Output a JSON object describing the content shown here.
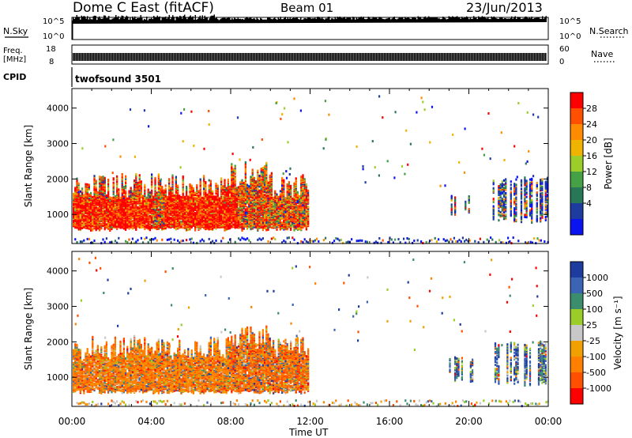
{
  "header": {
    "station": "Dome C East (fitACF)",
    "beam": "Beam 01",
    "date": "23/Jun/2013"
  },
  "strip": {
    "nsky_label": "N.Sky",
    "nsky_top": "10^5",
    "nsky_bottom": "10^0",
    "nsearch_label": "N.Search",
    "nsearch_top": "10^5",
    "nsearch_bottom": "10^0",
    "freq_label": "Freq.",
    "freq_unit": "[MHz]",
    "freq_top": "18",
    "freq_bottom": "8",
    "nave_label": "Nave",
    "nave_top": "60",
    "nave_bottom": "0",
    "cpid_label": "CPID",
    "cpid_value": "twofsound 3501"
  },
  "colors": {
    "power": [
      "#0a14f0",
      "#1e3ca0",
      "#287858",
      "#46a046",
      "#9ccd28",
      "#f0b400",
      "#ff8c00",
      "#ff5000",
      "#ff0000"
    ],
    "velocity": [
      "#1e3ca0",
      "#3c64b4",
      "#3c8c6e",
      "#9bcd28",
      "#c8c8c8",
      "#f0a000",
      "#ff8000",
      "#ff5000",
      "#ff0000"
    ]
  },
  "chart_data": [
    {
      "type": "heatmap",
      "ylabel": "Slant Range [km]",
      "xlabel": "",
      "x_ticks": [
        "00:00",
        "04:00",
        "08:00",
        "12:00",
        "16:00",
        "20:00",
        "00:00"
      ],
      "xlim": [
        0,
        24
      ],
      "ylim": [
        180,
        4550
      ],
      "y_ticks": [
        1000,
        2000,
        3000,
        4000
      ],
      "colorbar_label": "Power [dB]",
      "colorbar_ticks": [
        "4",
        "8",
        "12",
        "16",
        "20",
        "24",
        "28"
      ],
      "regions": [
        {
          "t0": 0.0,
          "t1": 11.9,
          "r0": 600,
          "r1": 2100,
          "value": "mixed-high"
        },
        {
          "t0": 4.6,
          "t1": 8.3,
          "r0": 700,
          "r1": 1700,
          "value": "high"
        },
        {
          "t0": 19.0,
          "t1": 20.2,
          "r0": 900,
          "r1": 1800,
          "value": "mixed"
        },
        {
          "t0": 21.2,
          "t1": 24.0,
          "r0": 800,
          "r1": 2200,
          "value": "mixed"
        }
      ]
    },
    {
      "type": "heatmap",
      "ylabel": "Slant Range [km]",
      "xlabel": "Time UT",
      "x_ticks": [
        "00:00",
        "04:00",
        "08:00",
        "12:00",
        "16:00",
        "20:00",
        "00:00"
      ],
      "xlim": [
        0,
        24
      ],
      "ylim": [
        180,
        4550
      ],
      "y_ticks": [
        1000,
        2000,
        3000,
        4000
      ],
      "colorbar_label": "Velocity [m s⁻¹]",
      "colorbar_ticks": [
        "1000",
        "500",
        "100",
        "25",
        "-25",
        "-100",
        "-500",
        "-1000"
      ],
      "regions": [
        {
          "t0": 0.0,
          "t1": 11.9,
          "r0": 600,
          "r1": 2100,
          "value": "negative"
        },
        {
          "t0": 19.0,
          "t1": 20.2,
          "r0": 900,
          "r1": 1800,
          "value": "positive"
        },
        {
          "t0": 21.2,
          "t1": 24.0,
          "r0": 800,
          "r1": 2200,
          "value": "positive"
        }
      ]
    }
  ]
}
